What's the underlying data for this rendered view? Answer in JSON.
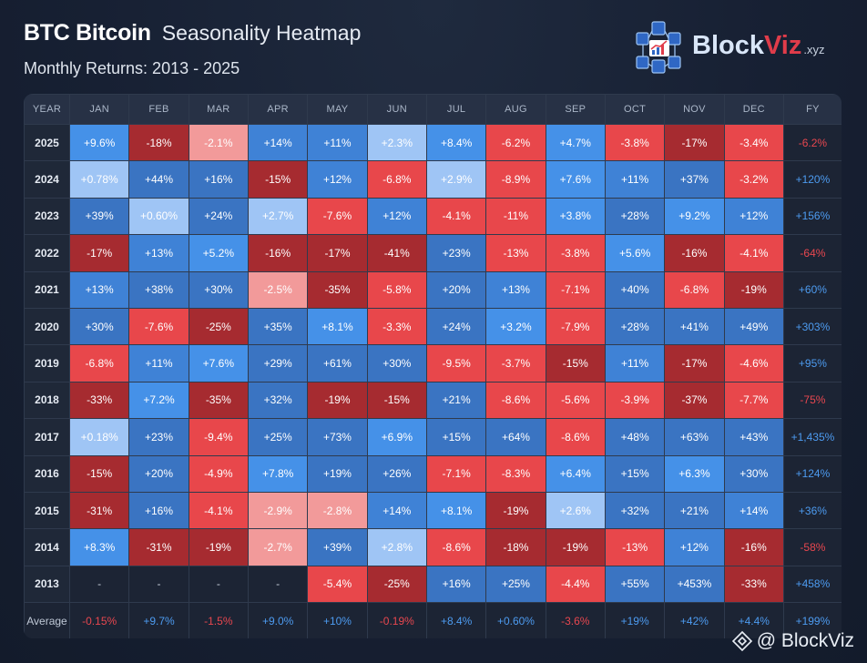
{
  "header": {
    "ticker": "BTC Bitcoin",
    "title": "Seasonality Heatmap",
    "subtitle": "Monthly Returns: 2013 - 2025"
  },
  "brand": {
    "name_a": "Block",
    "name_b": "Viz",
    "suffix": ".xyz"
  },
  "watermark": {
    "text": "@ BlockViz"
  },
  "colors": {
    "strong_pos": "#3a74c2",
    "pos": "#3f82d6",
    "mid_pos": "#4591e8",
    "weak_pos": "#9fc5f5",
    "weak_neg": "#f29a9a",
    "mid_neg": "#e8474b",
    "strong_neg": "#a62b30",
    "fy_pos": "#4d9bf0",
    "fy_neg": "#e8474f"
  },
  "chart_data": {
    "type": "heatmap",
    "title": "BTC Bitcoin Seasonality Heatmap",
    "subtitle": "Monthly Returns: 2013 - 2025",
    "columns": [
      "YEAR",
      "JAN",
      "FEB",
      "MAR",
      "APR",
      "MAY",
      "JUN",
      "JUL",
      "AUG",
      "SEP",
      "OCT",
      "NOV",
      "DEC",
      "FY"
    ],
    "rows": [
      {
        "year": "2025",
        "months": [
          "+9.6%",
          "-18%",
          "-2.1%",
          "+14%",
          "+11%",
          "+2.3%",
          "+8.4%",
          "-6.2%",
          "+4.7%",
          "-3.8%",
          "-17%",
          "-3.4%"
        ],
        "fy": "-6.2%"
      },
      {
        "year": "2024",
        "months": [
          "+0.78%",
          "+44%",
          "+16%",
          "-15%",
          "+12%",
          "-6.8%",
          "+2.9%",
          "-8.9%",
          "+7.6%",
          "+11%",
          "+37%",
          "-3.2%"
        ],
        "fy": "+120%"
      },
      {
        "year": "2023",
        "months": [
          "+39%",
          "+0.60%",
          "+24%",
          "+2.7%",
          "-7.6%",
          "+12%",
          "-4.1%",
          "-11%",
          "+3.8%",
          "+28%",
          "+9.2%",
          "+12%"
        ],
        "fy": "+156%"
      },
      {
        "year": "2022",
        "months": [
          "-17%",
          "+13%",
          "+5.2%",
          "-16%",
          "-17%",
          "-41%",
          "+23%",
          "-13%",
          "-3.8%",
          "+5.6%",
          "-16%",
          "-4.1%"
        ],
        "fy": "-64%"
      },
      {
        "year": "2021",
        "months": [
          "+13%",
          "+38%",
          "+30%",
          "-2.5%",
          "-35%",
          "-5.8%",
          "+20%",
          "+13%",
          "-7.1%",
          "+40%",
          "-6.8%",
          "-19%"
        ],
        "fy": "+60%"
      },
      {
        "year": "2020",
        "months": [
          "+30%",
          "-7.6%",
          "-25%",
          "+35%",
          "+8.1%",
          "-3.3%",
          "+24%",
          "+3.2%",
          "-7.9%",
          "+28%",
          "+41%",
          "+49%"
        ],
        "fy": "+303%"
      },
      {
        "year": "2019",
        "months": [
          "-6.8%",
          "+11%",
          "+7.6%",
          "+29%",
          "+61%",
          "+30%",
          "-9.5%",
          "-3.7%",
          "-15%",
          "+11%",
          "-17%",
          "-4.6%"
        ],
        "fy": "+95%"
      },
      {
        "year": "2018",
        "months": [
          "-33%",
          "+7.2%",
          "-35%",
          "+32%",
          "-19%",
          "-15%",
          "+21%",
          "-8.6%",
          "-5.6%",
          "-3.9%",
          "-37%",
          "-7.7%"
        ],
        "fy": "-75%"
      },
      {
        "year": "2017",
        "months": [
          "+0.18%",
          "+23%",
          "-9.4%",
          "+25%",
          "+73%",
          "+6.9%",
          "+15%",
          "+64%",
          "-8.6%",
          "+48%",
          "+63%",
          "+43%"
        ],
        "fy": "+1,435%"
      },
      {
        "year": "2016",
        "months": [
          "-15%",
          "+20%",
          "-4.9%",
          "+7.8%",
          "+19%",
          "+26%",
          "-7.1%",
          "-8.3%",
          "+6.4%",
          "+15%",
          "+6.3%",
          "+30%"
        ],
        "fy": "+124%"
      },
      {
        "year": "2015",
        "months": [
          "-31%",
          "+16%",
          "-4.1%",
          "-2.9%",
          "-2.8%",
          "+14%",
          "+8.1%",
          "-19%",
          "+2.6%",
          "+32%",
          "+21%",
          "+14%"
        ],
        "fy": "+36%"
      },
      {
        "year": "2014",
        "months": [
          "+8.3%",
          "-31%",
          "-19%",
          "-2.7%",
          "+39%",
          "+2.8%",
          "-8.6%",
          "-18%",
          "-19%",
          "-13%",
          "+12%",
          "-16%"
        ],
        "fy": "-58%"
      },
      {
        "year": "2013",
        "months": [
          "-",
          "-",
          "-",
          "-",
          "-5.4%",
          "-25%",
          "+16%",
          "+25%",
          "-4.4%",
          "+55%",
          "+453%",
          "-33%"
        ],
        "fy": "+458%"
      }
    ],
    "average": {
      "label": "Average",
      "months": [
        "-0.15%",
        "+9.7%",
        "-1.5%",
        "+9.0%",
        "+10%",
        "-0.19%",
        "+8.4%",
        "+0.60%",
        "-3.6%",
        "+19%",
        "+42%",
        "+4.4%"
      ],
      "fy": "+199%"
    }
  }
}
